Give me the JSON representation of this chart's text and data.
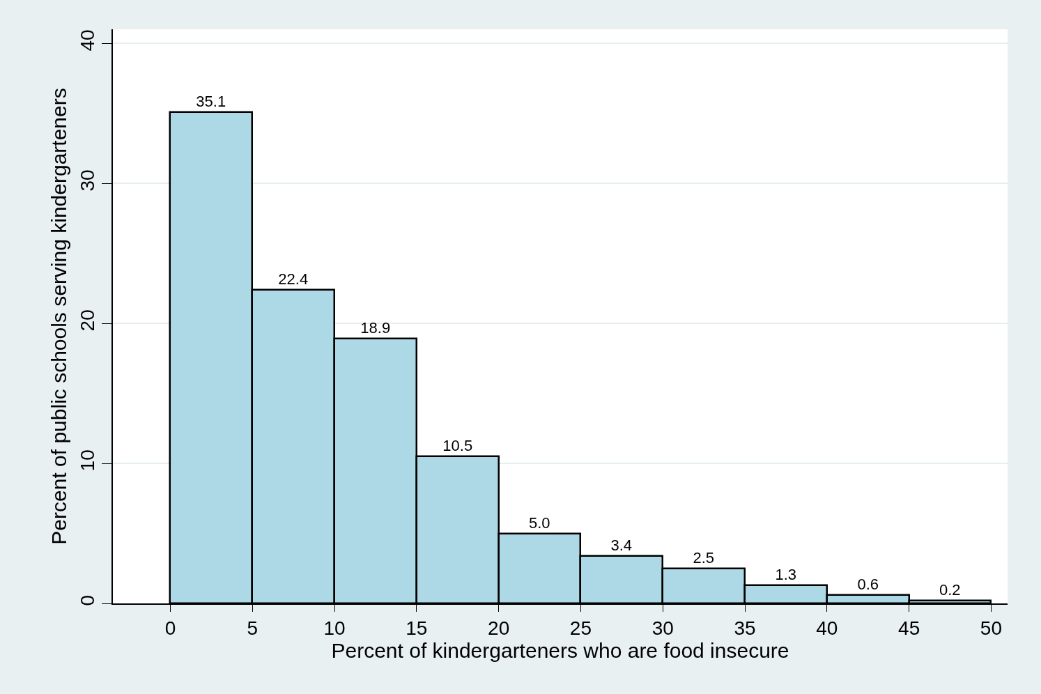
{
  "chart_data": {
    "type": "histogram",
    "xlabel": "Percent of kindergarteners who are food insecure",
    "ylabel": "Percent of public schools serving kindergarteners",
    "bins": [
      0,
      5,
      10,
      15,
      20,
      25,
      30,
      35,
      40,
      45,
      50
    ],
    "values": [
      35.1,
      22.4,
      18.9,
      10.5,
      5.0,
      3.4,
      2.5,
      1.3,
      0.6,
      0.2
    ],
    "value_labels": [
      "35.1",
      "22.4",
      "18.9",
      "10.5",
      "5.0",
      "3.4",
      "2.5",
      "1.3",
      "0.6",
      "0.2"
    ],
    "color": "#add8e6",
    "xlim": [
      -3.5,
      51
    ],
    "xticks": [
      0,
      5,
      10,
      15,
      20,
      25,
      30,
      35,
      40,
      45,
      50
    ],
    "ylim": [
      0,
      41
    ],
    "yticks": [
      0,
      10,
      20,
      30,
      40
    ],
    "grid": "y",
    "legend": false
  }
}
